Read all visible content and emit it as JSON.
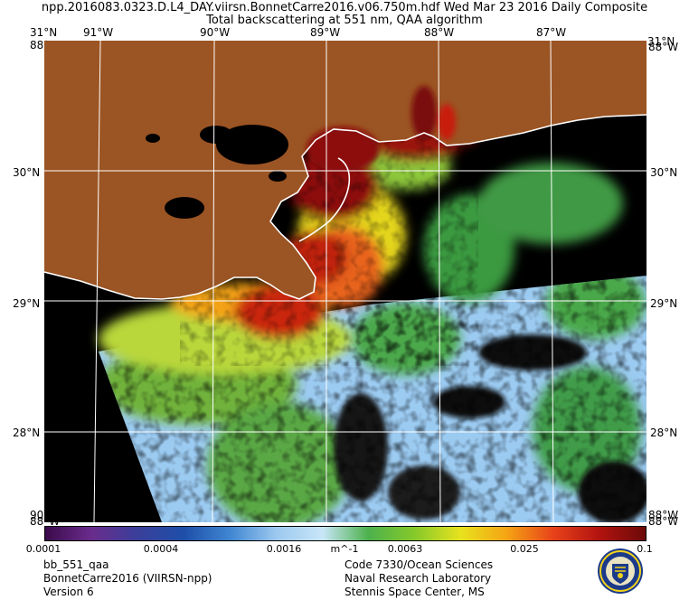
{
  "title": {
    "line1": "npp.2016083.0323.D.L4_DAY.viirsn.BonnetCarre2016.v06.750m.hdf   Wed Mar 23 2016 Daily Composite",
    "line2": "Total backscattering at 551 nm, QAA algorithm"
  },
  "map": {
    "lon_labels": [
      "91°W",
      "90°W",
      "89°W",
      "88°W",
      "87°W"
    ],
    "lat_labels": [
      "30°N",
      "29°N",
      "28°N"
    ],
    "corner_labels": {
      "top_left": "31°N",
      "top_right": "31°N",
      "top_left_lon": "88°W",
      "top_right_lon": "88°W",
      "bottom_left": "88°W",
      "bottom_right": "88°W",
      "bottom_left_lat": "90°W",
      "bottom_right_lat": "88°W"
    },
    "colors": {
      "land": "#9b5423",
      "nodata": "#000000",
      "coast": "#ffffff",
      "grid": "#ffffff"
    }
  },
  "colorbar": {
    "unit": "m^-1",
    "ticks": [
      "0.0001",
      "0.0004",
      "0.0016",
      "0.0063",
      "0.025",
      "0.1"
    ],
    "colors": [
      "#3b0a4a",
      "#6a2c8c",
      "#3a3f9a",
      "#1e4fa8",
      "#3f86d1",
      "#9cc8ef",
      "#c8e6f8",
      "#4cb14c",
      "#86c92a",
      "#e8e21e",
      "#f5a313",
      "#e8421a",
      "#b2130f",
      "#6b0a08"
    ]
  },
  "footer": {
    "left": [
      "bb_551_qaa",
      "BonnetCarre2016 (VIIRSN-npp)",
      "Version 6"
    ],
    "center": [
      "Code 7330/Ocean Sciences",
      "Naval Research Laboratory",
      "Stennis Space Center, MS"
    ]
  }
}
